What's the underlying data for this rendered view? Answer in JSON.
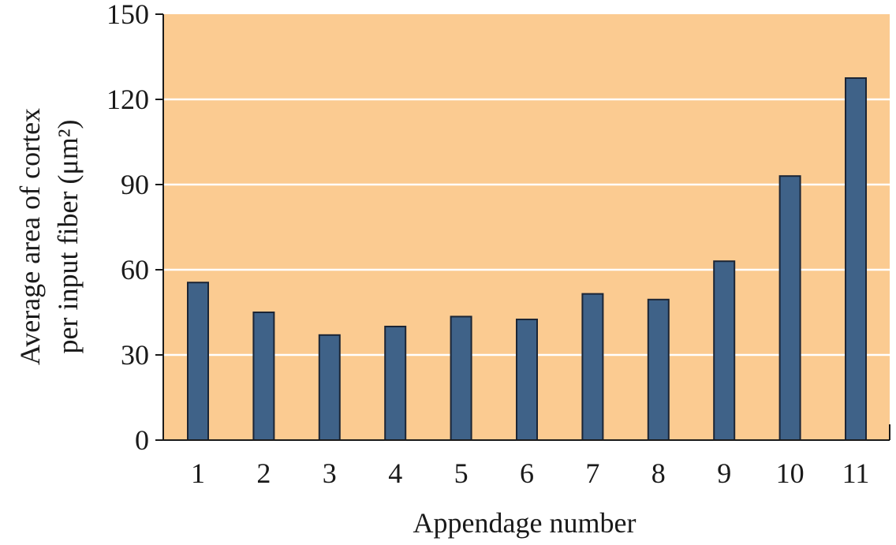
{
  "chart_data": {
    "type": "bar",
    "categories": [
      "1",
      "2",
      "3",
      "4",
      "5",
      "6",
      "7",
      "8",
      "9",
      "10",
      "11"
    ],
    "values": [
      55.5,
      45,
      37,
      40,
      43.5,
      42.5,
      51.5,
      49.5,
      63,
      93,
      127.5
    ],
    "xlabel": "Appendage number",
    "ylabel_line1": "Average area of cortex",
    "ylabel_line2": "per input fiber (μm²)",
    "ylim": [
      0,
      150
    ],
    "yticks": [
      "0",
      "30",
      "60",
      "90",
      "120",
      "150"
    ],
    "grid": true,
    "colors": {
      "plot_background": "#FBCB91",
      "bar_fill": "#3F6288",
      "bar_stroke": "#1B2535",
      "gridline": "#FFFFFF",
      "axis": "#1a1a1a"
    }
  }
}
